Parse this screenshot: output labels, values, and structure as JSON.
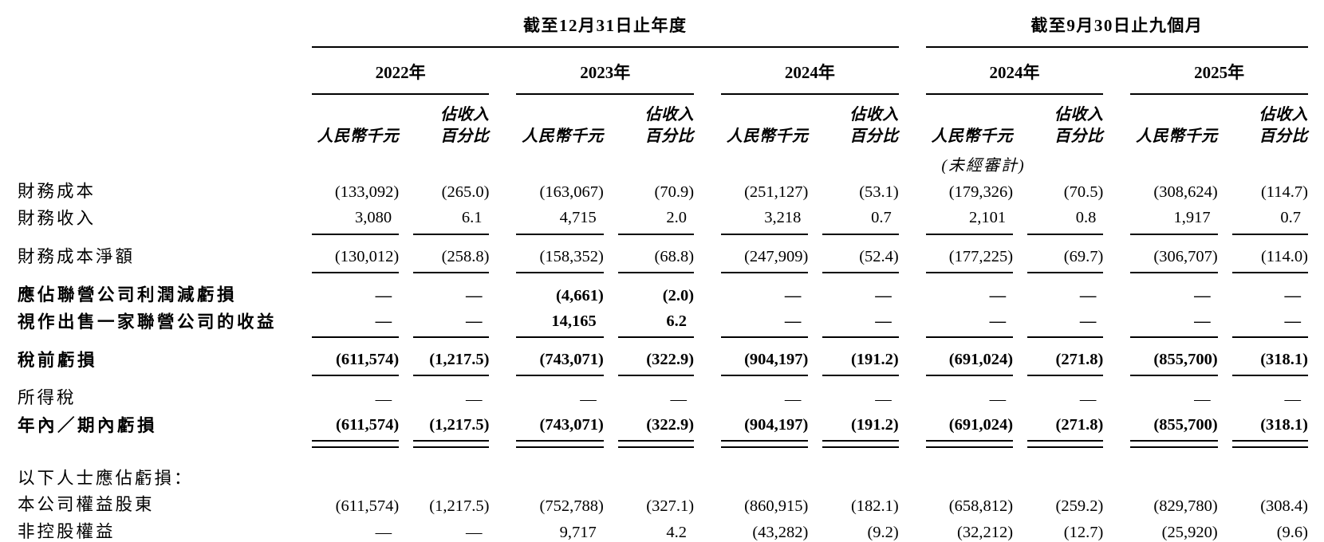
{
  "page": {
    "background": "#ffffff",
    "text_color": "#000000",
    "rule_color": "#000000"
  },
  "table": {
    "col_groups": [
      {
        "title": "截至12月31日止年度",
        "years": [
          "2022年",
          "2023年",
          "2024年"
        ]
      },
      {
        "title": "截至9月30日止九個月",
        "years": [
          "2024年",
          "2025年"
        ]
      }
    ],
    "subheaders": {
      "amount": "人民幣千元",
      "percent_line1": "佔收入",
      "percent_line2": "百分比"
    },
    "unaudited_note": "(未經審計)",
    "rows": [
      {
        "label": "財務成本",
        "bold": false,
        "rule": "none",
        "values": [
          "(133,092)",
          "(265.0)",
          "(163,067)",
          "(70.9)",
          "(251,127)",
          "(53.1)",
          "(179,326)",
          "(70.5)",
          "(308,624)",
          "(114.7)"
        ]
      },
      {
        "label": "財務收入",
        "bold": false,
        "rule": "single",
        "values": [
          "3,080",
          "6.1",
          "4,715",
          "2.0",
          "3,218",
          "0.7",
          "2,101",
          "0.8",
          "1,917",
          "0.7"
        ]
      },
      {
        "label": "財務成本淨額",
        "bold": false,
        "rule": "single",
        "values": [
          "(130,012)",
          "(258.8)",
          "(158,352)",
          "(68.8)",
          "(247,909)",
          "(52.4)",
          "(177,225)",
          "(69.7)",
          "(306,707)",
          "(114.0)"
        ]
      },
      {
        "label": "應佔聯營公司利潤減虧損",
        "bold": true,
        "rule": "none",
        "values": [
          "—",
          "—",
          "(4,661)",
          "(2.0)",
          "—",
          "—",
          "—",
          "—",
          "—",
          "—"
        ]
      },
      {
        "label": "視作出售一家聯營公司的收益",
        "bold": true,
        "rule": "single",
        "values": [
          "—",
          "—",
          "14,165",
          "6.2",
          "—",
          "—",
          "—",
          "—",
          "—",
          "—"
        ]
      },
      {
        "label": "稅前虧損",
        "bold": true,
        "rule": "single",
        "values": [
          "(611,574)",
          "(1,217.5)",
          "(743,071)",
          "(322.9)",
          "(904,197)",
          "(191.2)",
          "(691,024)",
          "(271.8)",
          "(855,700)",
          "(318.1)"
        ]
      },
      {
        "label": "所得稅",
        "bold": false,
        "rule": "none",
        "values": [
          "—",
          "—",
          "—",
          "—",
          "—",
          "—",
          "—",
          "—",
          "—",
          "—"
        ]
      },
      {
        "label": "年內／期內虧損",
        "bold": true,
        "rule": "double",
        "values": [
          "(611,574)",
          "(1,217.5)",
          "(743,071)",
          "(322.9)",
          "(904,197)",
          "(191.2)",
          "(691,024)",
          "(271.8)",
          "(855,700)",
          "(318.1)"
        ]
      },
      {
        "label": "以下人士應佔虧損：",
        "bold": false,
        "rule": "none",
        "values": [
          "",
          "",
          "",
          "",
          "",
          "",
          "",
          "",
          "",
          ""
        ]
      },
      {
        "label": "本公司權益股東",
        "bold": false,
        "rule": "none",
        "values": [
          "(611,574)",
          "(1,217.5)",
          "(752,788)",
          "(327.1)",
          "(860,915)",
          "(182.1)",
          "(658,812)",
          "(259.2)",
          "(829,780)",
          "(308.4)"
        ]
      },
      {
        "label": "非控股權益",
        "bold": false,
        "rule": "none",
        "values": [
          "—",
          "—",
          "9,717",
          "4.2",
          "(43,282)",
          "(9.2)",
          "(32,212)",
          "(12.7)",
          "(25,920)",
          "(9.6)"
        ]
      }
    ]
  }
}
